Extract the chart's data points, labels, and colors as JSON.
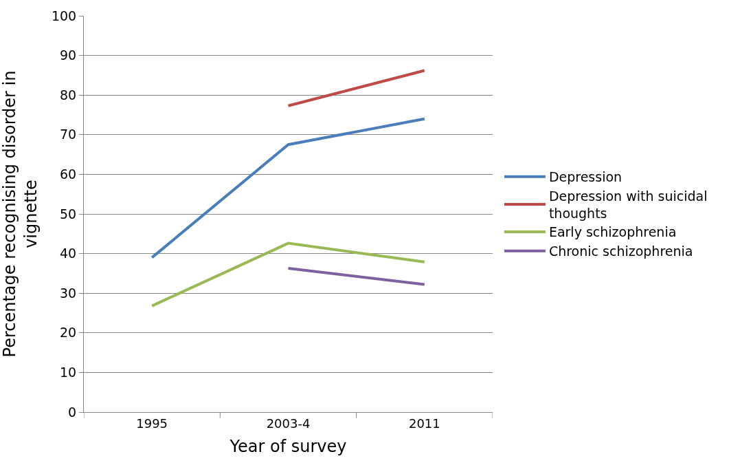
{
  "chart_data": {
    "type": "line",
    "xlabel": "Year of survey",
    "ylabel": "Percentage recognising disorder in vignette",
    "categories": [
      "1995",
      "2003-4",
      "2011"
    ],
    "series": [
      {
        "name": "Depression",
        "color": "#4a7ebb",
        "values": [
          39,
          67.5,
          74
        ]
      },
      {
        "name": "Depression with suicidal thoughts",
        "color": "#be4b48",
        "values": [
          null,
          77.3,
          86.2
        ]
      },
      {
        "name": "Early schizophrenia",
        "color": "#98b954",
        "values": [
          26.8,
          42.6,
          37.9
        ]
      },
      {
        "name": "Chronic schizophrenia",
        "color": "#7d60a0",
        "values": [
          null,
          36.3,
          32.2
        ]
      }
    ],
    "ylim": [
      0,
      100
    ],
    "yticks": [
      0,
      10,
      20,
      30,
      40,
      50,
      60,
      70,
      80,
      90,
      100
    ],
    "grid": "y",
    "legend": "right",
    "marker": "none",
    "line_style": "solid"
  }
}
